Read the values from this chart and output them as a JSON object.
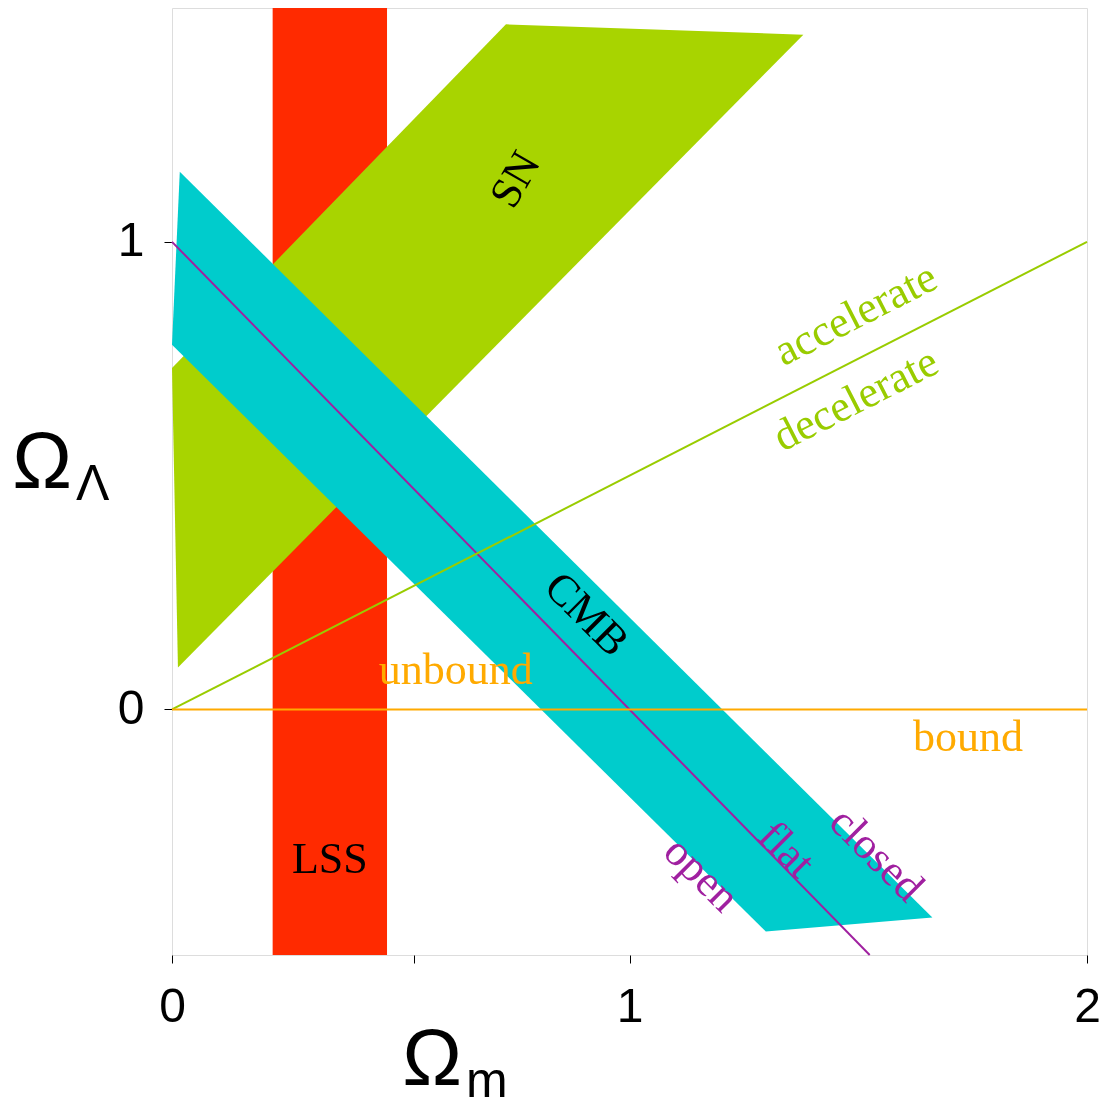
{
  "chart_data": {
    "type": "area",
    "xlabel": "Ω$_{m}$",
    "ylabel": "Ω$_{Λ}$",
    "xlim": [
      0,
      2
    ],
    "ylim": [
      -0.525,
      1.5
    ],
    "xticks": [
      0,
      {
        "value": 0.53,
        "label": null
      },
      1,
      2
    ],
    "yticks": [
      0,
      1
    ],
    "grid": false,
    "series": [
      {
        "color": "#a8d400",
        "x": [
          0,
          0.73,
          1.38,
          0.013
        ],
        "values": [
          0.73,
          1.465,
          1.443,
          0.09
        ]
      },
      {
        "color": "#00cccc",
        "x": [
          0,
          0.017,
          1.662,
          1.298
        ],
        "values": [
          0.78,
          1.15,
          -0.445,
          -0.475
        ]
      },
      {
        "type": "line",
        "color": "#a020a0",
        "x": [
          0,
          1.525
        ],
        "values": [
          1,
          -0.525
        ]
      },
      {
        "type": "line",
        "color": "#99cc00",
        "x": [
          0,
          2
        ],
        "values": [
          0,
          1
        ]
      }
    ],
    "bands": [
      {
        "axis": "x",
        "from": 0.22,
        "to": 0.47,
        "label": "LSS",
        "color": "#ff2a00"
      }
    ],
    "ref_lines": [
      {
        "axis": "y",
        "value": 0,
        "label": "unbound",
        "color": "#ffaa00"
      }
    ],
    "annotations": [
      "SN",
      "CMB",
      "accelerate",
      "decelerate",
      "bound",
      "open",
      "flat",
      "closed"
    ]
  }
}
